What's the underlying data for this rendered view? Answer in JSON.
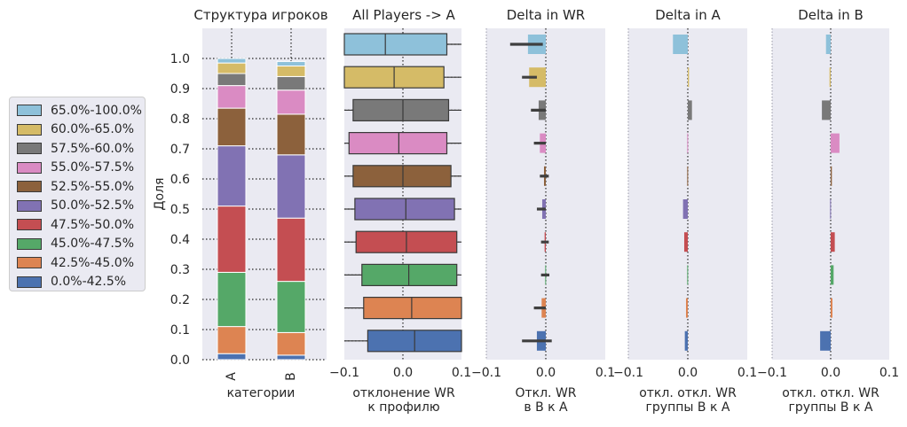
{
  "legend": {
    "items": [
      {
        "label": "65.0%-100.0%",
        "color": "#8ec1da"
      },
      {
        "label": "60.0%-65.0%",
        "color": "#d5bb67"
      },
      {
        "label": "57.5%-60.0%",
        "color": "#797979"
      },
      {
        "label": "55.0%-57.5%",
        "color": "#da8bc3"
      },
      {
        "label": "52.5%-55.0%",
        "color": "#8c613c"
      },
      {
        "label": "50.0%-52.5%",
        "color": "#8172b3"
      },
      {
        "label": "47.5%-50.0%",
        "color": "#c44e52"
      },
      {
        "label": "45.0%-47.5%",
        "color": "#55a868"
      },
      {
        "label": "42.5%-45.0%",
        "color": "#dd8452"
      },
      {
        "label": "0.0%-42.5%",
        "color": "#4c72b0"
      }
    ]
  },
  "chart_data": [
    {
      "type": "bar",
      "stacked": true,
      "title": "Структура игроков",
      "xlabel": "категории",
      "ylabel": "Доля",
      "categories": [
        "A",
        "B"
      ],
      "ylim": [
        0,
        1.0
      ],
      "yticks": [
        "0.0",
        "0.1",
        "0.2",
        "0.3",
        "0.4",
        "0.5",
        "0.6",
        "0.7",
        "0.8",
        "0.9",
        "1.0"
      ],
      "series": [
        {
          "name": "0.0%-42.5%",
          "values": [
            0.02,
            0.015
          ]
        },
        {
          "name": "42.5%-45.0%",
          "values": [
            0.09,
            0.075
          ]
        },
        {
          "name": "45.0%-47.5%",
          "values": [
            0.18,
            0.17
          ]
        },
        {
          "name": "47.5%-50.0%",
          "values": [
            0.22,
            0.21
          ]
        },
        {
          "name": "50.0%-52.5%",
          "values": [
            0.2,
            0.21
          ]
        },
        {
          "name": "52.5%-55.0%",
          "values": [
            0.125,
            0.135
          ]
        },
        {
          "name": "55.0%-57.5%",
          "values": [
            0.075,
            0.08
          ]
        },
        {
          "name": "57.5%-60.0%",
          "values": [
            0.04,
            0.045
          ]
        },
        {
          "name": "60.0%-65.0%",
          "values": [
            0.035,
            0.035
          ]
        },
        {
          "name": "65.0%-100.0%",
          "values": [
            0.015,
            0.015
          ]
        }
      ]
    },
    {
      "type": "box",
      "title": "All Players -> A",
      "xlabel": "отклонение WR\nк профилю",
      "xlim": [
        -0.1,
        0.1
      ],
      "xticks": [
        "−0.1",
        "0.0",
        "0.1"
      ],
      "groups": [
        {
          "name": "65.0%-100.0%",
          "q1": -0.1,
          "median": -0.03,
          "q3": 0.075
        },
        {
          "name": "60.0%-65.0%",
          "q1": -0.1,
          "median": -0.015,
          "q3": 0.07
        },
        {
          "name": "57.5%-60.0%",
          "q1": -0.085,
          "median": 0.0,
          "q3": 0.078
        },
        {
          "name": "55.0%-57.5%",
          "q1": -0.092,
          "median": -0.007,
          "q3": 0.075
        },
        {
          "name": "52.5%-55.0%",
          "q1": -0.085,
          "median": 0.0,
          "q3": 0.082
        },
        {
          "name": "50.0%-52.5%",
          "q1": -0.082,
          "median": 0.005,
          "q3": 0.088
        },
        {
          "name": "47.5%-50.0%",
          "q1": -0.08,
          "median": 0.006,
          "q3": 0.092
        },
        {
          "name": "45.0%-47.5%",
          "q1": -0.07,
          "median": 0.01,
          "q3": 0.092
        },
        {
          "name": "42.5%-45.0%",
          "q1": -0.067,
          "median": 0.015,
          "q3": 0.1
        },
        {
          "name": "0.0%-42.5%",
          "q1": -0.06,
          "median": 0.02,
          "q3": 0.1
        }
      ]
    },
    {
      "type": "bar",
      "orientation": "horizontal",
      "title": "Delta in WR",
      "xlabel": "Откл. WR\nв B к A",
      "xlim": [
        -0.1,
        0.1
      ],
      "xticks": [
        "−0.1",
        "0.0",
        "0.1"
      ],
      "groups": [
        "65.0%-100.0%",
        "60.0%-65.0%",
        "57.5%-60.0%",
        "55.0%-57.5%",
        "52.5%-55.0%",
        "50.0%-52.5%",
        "47.5%-50.0%",
        "45.0%-47.5%",
        "42.5%-45.0%",
        "0.0%-42.5%"
      ],
      "values": [
        -0.03,
        -0.028,
        -0.012,
        -0.01,
        -0.003,
        -0.006,
        -0.002,
        -0.001,
        -0.007,
        -0.015
      ],
      "error_low": [
        -0.06,
        -0.04,
        -0.025,
        -0.02,
        -0.01,
        -0.015,
        -0.008,
        -0.008,
        -0.02,
        -0.04
      ],
      "error_high": [
        -0.005,
        -0.015,
        0.0,
        0.0,
        0.005,
        0.0,
        0.005,
        0.006,
        0.0,
        0.01
      ]
    },
    {
      "type": "bar",
      "orientation": "horizontal",
      "title": "Delta in A",
      "xlabel": "откл. откл. WR\nгруппы B к A",
      "xlim": [
        -0.1,
        0.1
      ],
      "xticks": [
        "−0.1",
        "0.0",
        "0.1"
      ],
      "groups": [
        "65.0%-100.0%",
        "60.0%-65.0%",
        "57.5%-60.0%",
        "55.0%-57.5%",
        "52.5%-55.0%",
        "50.0%-52.5%",
        "47.5%-50.0%",
        "45.0%-47.5%",
        "42.5%-45.0%",
        "0.0%-42.5%"
      ],
      "values": [
        -0.025,
        0.002,
        0.007,
        -0.001,
        -0.001,
        -0.008,
        -0.006,
        -0.001,
        -0.003,
        -0.005
      ]
    },
    {
      "type": "bar",
      "orientation": "horizontal",
      "title": "Delta in B",
      "xlabel": "откл. откл. WR\nгруппы B к A",
      "xlim": [
        -0.1,
        0.1
      ],
      "xticks": [
        "−0.1",
        "0.0",
        "0.1"
      ],
      "groups": [
        "65.0%-100.0%",
        "60.0%-65.0%",
        "57.5%-60.0%",
        "55.0%-57.5%",
        "52.5%-55.0%",
        "50.0%-52.5%",
        "47.5%-50.0%",
        "45.0%-47.5%",
        "42.5%-45.0%",
        "0.0%-42.5%"
      ],
      "values": [
        -0.008,
        -0.002,
        -0.015,
        0.015,
        0.002,
        -0.001,
        0.007,
        0.005,
        0.003,
        -0.018
      ]
    }
  ]
}
